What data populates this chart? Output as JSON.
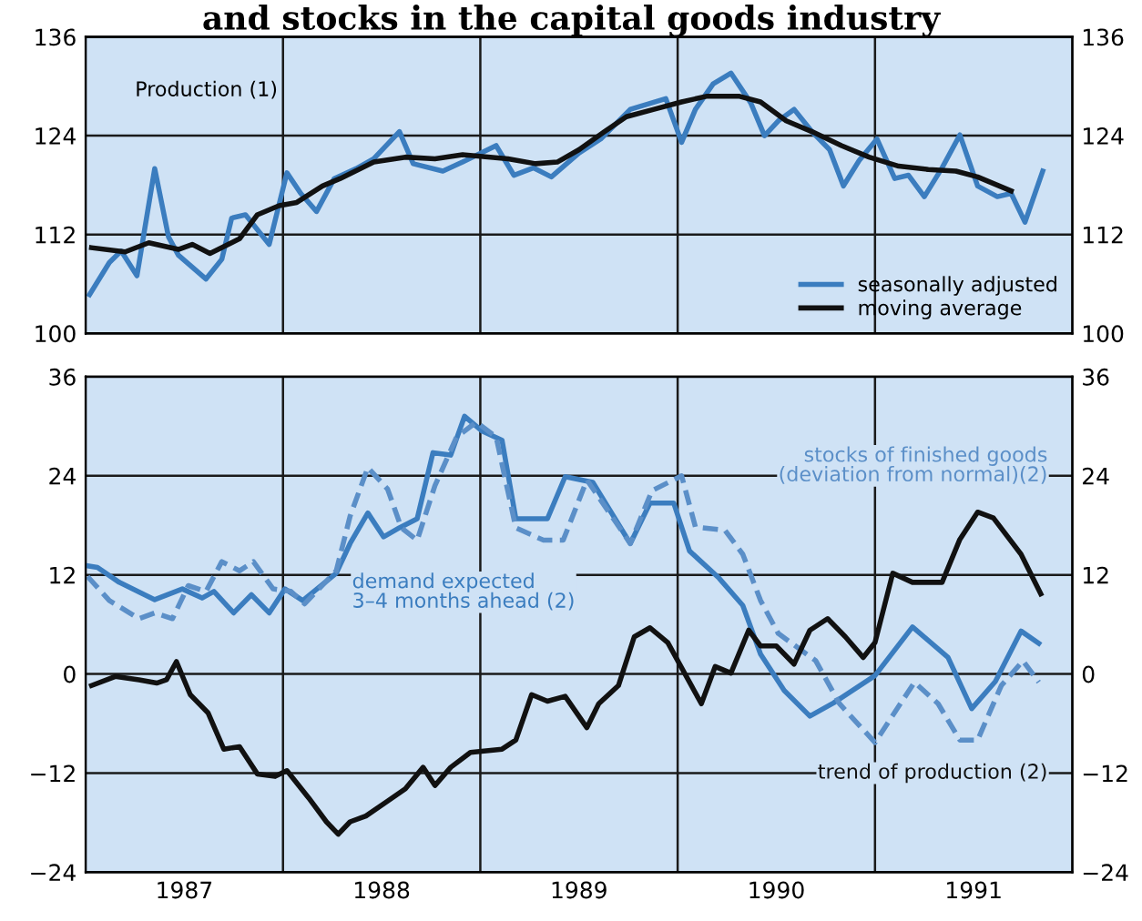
{
  "chart_data": [
    {
      "type": "line",
      "title": "and stocks in the capital goods industry",
      "annotations": [
        "Production (1)"
      ],
      "xlim": [
        1987,
        1992
      ],
      "xticks": [
        {
          "value": 1988,
          "label": null
        },
        {
          "value": 1989,
          "label": null
        },
        {
          "value": 1990,
          "label": null
        },
        {
          "value": 1991,
          "label": null
        }
      ],
      "ylim": [
        100,
        136
      ],
      "yticks": [
        100,
        112,
        124,
        136
      ],
      "y2lim": [
        100,
        136
      ],
      "y2ticks": [
        100,
        112,
        124,
        136
      ],
      "tick_labels": "y",
      "grid": true,
      "legend": "bottom right",
      "series": [
        {
          "name": "seasonally adjusted",
          "color": "#3b7dbf",
          "line_style": "solid",
          "x": [
            1987.02,
            1987.12,
            1987.18,
            1987.26,
            1987.35,
            1987.42,
            1987.47,
            1987.61,
            1987.69,
            1987.74,
            1987.81,
            1987.93,
            1988.02,
            1988.09,
            1988.17,
            1988.26,
            1988.37,
            1988.46,
            1988.59,
            1988.66,
            1988.81,
            1988.91,
            1989.08,
            1989.17,
            1989.27,
            1989.36,
            1989.5,
            1989.61,
            1989.76,
            1989.94,
            1990.02,
            1990.09,
            1990.18,
            1990.27,
            1990.37,
            1990.44,
            1990.51,
            1990.59,
            1990.68,
            1990.77,
            1990.84,
            1990.92,
            1991.01,
            1991.1,
            1991.17,
            1991.25,
            1991.34,
            1991.43,
            1991.52,
            1991.62,
            1991.69,
            1991.76,
            1991.85
          ],
          "values": [
            104.7,
            108.6,
            110,
            107,
            120,
            111.7,
            109.5,
            106.6,
            109,
            114,
            114.4,
            110.8,
            119.5,
            117,
            114.8,
            118.8,
            120,
            121.2,
            124.5,
            120.6,
            119.7,
            120.8,
            122.8,
            119.2,
            120.1,
            119,
            121.9,
            123.6,
            127.2,
            128.5,
            123.2,
            127.2,
            130.3,
            131.6,
            128,
            124,
            125.8,
            127.2,
            124.5,
            122.3,
            117.9,
            121,
            123.6,
            118.8,
            119.2,
            116.6,
            120.1,
            124.1,
            117.9,
            116.6,
            117,
            113.5,
            119.7
          ]
        },
        {
          "name": "moving average",
          "color": "#111111",
          "line_style": "solid",
          "x": [
            1987.03,
            1987.2,
            1987.32,
            1987.47,
            1987.54,
            1987.63,
            1987.78,
            1987.87,
            1987.98,
            1988.07,
            1988.2,
            1988.29,
            1988.46,
            1988.62,
            1988.77,
            1988.91,
            1989.14,
            1989.28,
            1989.39,
            1989.5,
            1989.63,
            1989.74,
            1989.88,
            1990.02,
            1990.15,
            1990.31,
            1990.42,
            1990.55,
            1990.68,
            1990.83,
            1990.97,
            1991.12,
            1991.27,
            1991.41,
            1991.52,
            1991.69
          ],
          "values": [
            110.4,
            109.9,
            111,
            110.2,
            110.8,
            109.7,
            111.5,
            114.4,
            115.5,
            115.9,
            117.9,
            118.8,
            120.8,
            121.4,
            121.2,
            121.7,
            121.2,
            120.6,
            120.8,
            122.3,
            124.5,
            126.3,
            127.2,
            128.1,
            128.8,
            128.8,
            128.1,
            125.8,
            124.5,
            122.8,
            121.4,
            120.3,
            119.9,
            119.7,
            119,
            117.3
          ]
        }
      ]
    },
    {
      "type": "line",
      "xlim": [
        1987,
        1992
      ],
      "xticks": [
        {
          "value": 1987.5,
          "label": "1987"
        },
        {
          "value": 1988,
          "label": null
        },
        {
          "value": 1988.5,
          "label": "1988"
        },
        {
          "value": 1989,
          "label": null
        },
        {
          "value": 1989.5,
          "label": "1989"
        },
        {
          "value": 1990,
          "label": null
        },
        {
          "value": 1990.5,
          "label": "1990"
        },
        {
          "value": 1991,
          "label": null
        },
        {
          "value": 1991.5,
          "label": "1991"
        }
      ],
      "ylim": [
        -24,
        36
      ],
      "yticks": [
        -24,
        -12,
        0,
        12,
        24,
        36
      ],
      "y2lim": [
        -24,
        36
      ],
      "y2ticks": [
        -24,
        -12,
        0,
        12,
        24,
        36
      ],
      "grid": true,
      "series": [
        {
          "name": "demand expected\n3–4 months ahead (2)",
          "color": "#3b7dbf",
          "line_style": "solid",
          "x": [
            1987.01,
            1987.06,
            1987.17,
            1987.35,
            1987.49,
            1987.59,
            1987.65,
            1987.75,
            1987.84,
            1987.93,
            1988.01,
            1988.1,
            1988.27,
            1988.34,
            1988.43,
            1988.51,
            1988.59,
            1988.68,
            1988.76,
            1988.85,
            1988.92,
            1989.01,
            1989.11,
            1989.18,
            1989.34,
            1989.43,
            1989.57,
            1989.76,
            1989.86,
            1989.98,
            1990.06,
            1990.21,
            1990.33,
            1990.42,
            1990.54,
            1990.67,
            1990.79,
            1991.0,
            1991.19,
            1991.37,
            1991.49,
            1991.61,
            1991.74,
            1991.83
          ],
          "values": [
            13.1,
            12.9,
            11.1,
            9,
            10.3,
            9.2,
            10,
            7.4,
            9.6,
            7.4,
            10.3,
            8.9,
            12.2,
            15.8,
            19.5,
            16.6,
            17.7,
            18.8,
            26.8,
            26.5,
            31.2,
            29.4,
            28.3,
            18.8,
            18.8,
            23.9,
            23.2,
            15.8,
            20.7,
            20.7,
            14.9,
            11.6,
            8.3,
            2.4,
            -2,
            -5.1,
            -3.5,
            -0.2,
            5.7,
            2,
            -4.2,
            -0.9,
            5.2,
            3.7
          ]
        },
        {
          "name": "stocks of finished goods\n(deviation from normal)(2)",
          "color": "#5b8fc8",
          "line_style": "dashed",
          "x": [
            1987.01,
            1987.12,
            1987.27,
            1987.35,
            1987.44,
            1987.52,
            1987.61,
            1987.69,
            1987.78,
            1987.85,
            1987.95,
            1988.04,
            1988.11,
            1988.27,
            1988.34,
            1988.43,
            1988.53,
            1988.6,
            1988.68,
            1988.77,
            1988.88,
            1988.98,
            1989.08,
            1989.18,
            1989.32,
            1989.42,
            1989.54,
            1989.76,
            1989.87,
            1990.02,
            1990.09,
            1990.24,
            1990.33,
            1990.42,
            1990.51,
            1990.7,
            1990.82,
            1991.0,
            1991.2,
            1991.32,
            1991.43,
            1991.52,
            1991.64,
            1991.75,
            1991.83
          ],
          "values": [
            11.8,
            8.9,
            6.7,
            7.4,
            6.7,
            10.7,
            10,
            13.6,
            12.5,
            13.6,
            10.3,
            10,
            8.5,
            12.5,
            19.1,
            25,
            22.4,
            17.7,
            16.2,
            22.8,
            28.7,
            30.5,
            28.7,
            17.7,
            16.2,
            16.2,
            23.5,
            15.8,
            22.2,
            24,
            17.8,
            17.4,
            14.5,
            8.9,
            4.9,
            1.6,
            -3.6,
            -8.3,
            -1,
            -3.6,
            -8,
            -8,
            -1.4,
            1.6,
            -1
          ]
        },
        {
          "name": "trend of production (2)",
          "color": "#111111",
          "line_style": "solid",
          "x": [
            1987.03,
            1987.15,
            1987.27,
            1987.36,
            1987.41,
            1987.46,
            1987.53,
            1987.62,
            1987.7,
            1987.78,
            1987.87,
            1987.96,
            1988.02,
            1988.13,
            1988.22,
            1988.28,
            1988.34,
            1988.42,
            1988.53,
            1988.62,
            1988.71,
            1988.77,
            1988.85,
            1988.95,
            1989.11,
            1989.18,
            1989.26,
            1989.34,
            1989.43,
            1989.54,
            1989.6,
            1989.7,
            1989.78,
            1989.86,
            1989.95,
            1990.12,
            1990.19,
            1990.27,
            1990.36,
            1990.42,
            1990.5,
            1990.59,
            1990.67,
            1990.76,
            1990.85,
            1990.94,
            1991.0,
            1991.09,
            1991.19,
            1991.34,
            1991.43,
            1991.52,
            1991.6,
            1991.74,
            1991.84
          ],
          "values": [
            -1.4,
            -0.3,
            -0.7,
            -1.1,
            -0.7,
            1.5,
            -2.5,
            -4.7,
            -9.1,
            -8.8,
            -12.1,
            -12.4,
            -11.7,
            -15,
            -17.9,
            -19.4,
            -17.9,
            -17.2,
            -15.4,
            -13.9,
            -11.3,
            -13.5,
            -11.3,
            -9.5,
            -9.1,
            -8,
            -2.5,
            -3.3,
            -2.7,
            -6.5,
            -3.6,
            -1.4,
            4.5,
            5.6,
            3.8,
            -3.6,
            0.9,
            0.1,
            5.3,
            3.4,
            3.4,
            1.2,
            5.3,
            6.7,
            4.5,
            2,
            3.8,
            12.2,
            11.1,
            11.1,
            16.3,
            19.6,
            18.9,
            14.5,
            9.7
          ]
        }
      ]
    }
  ]
}
